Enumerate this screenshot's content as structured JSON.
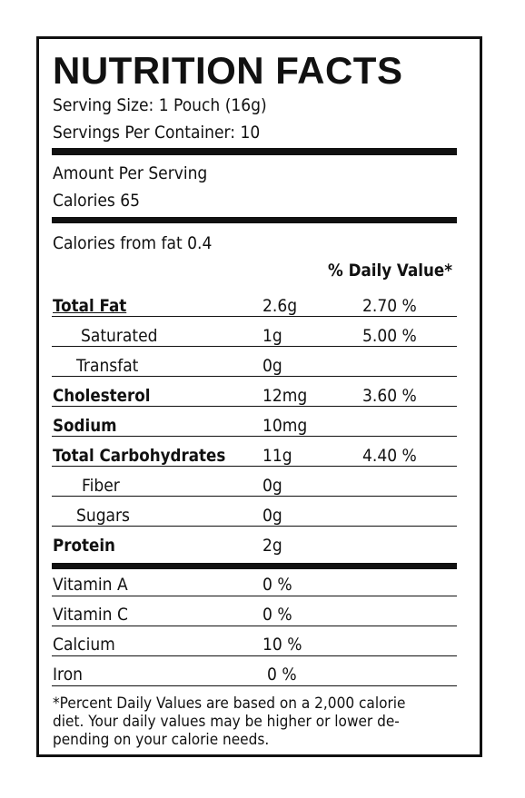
{
  "title": "NUTRITION FACTS",
  "serving_size": "Serving Size: 1 Pouch (16g)",
  "servings_per_container": "Servings Per Container: 10",
  "amount_per_serving": "Amount Per Serving",
  "calories": "Calories  65",
  "calories_from_fat": "Calories from fat 0.4",
  "dv_header": "% Daily Value*",
  "nutrients": {
    "total_fat": {
      "name": "Total Fat",
      "amount": "2.6g",
      "dv": "2.70 %"
    },
    "saturated": {
      "name": "Saturated",
      "amount": "1g",
      "dv": "5.00 %"
    },
    "transfat": {
      "name": "Transfat",
      "amount": "0g"
    },
    "cholesterol": {
      "name": "Cholesterol",
      "amount": "12mg",
      "dv": "3.60 %"
    },
    "sodium": {
      "name": "Sodium",
      "amount": "10mg"
    },
    "total_carbohydrates": {
      "name": "Total Carbohydrates",
      "amount": "11g",
      "dv": "4.40 %"
    },
    "fiber": {
      "name": "Fiber",
      "amount": "0g"
    },
    "sugars": {
      "name": "Sugars",
      "amount": "0g"
    },
    "protein": {
      "name": "Protein",
      "amount": "2g"
    }
  },
  "vitamins": {
    "vitamin_a": {
      "name": "Vitamin A",
      "amount": "0 %"
    },
    "vitamin_c": {
      "name": "Vitamin C",
      "amount": "0 %"
    },
    "calcium": {
      "name": "Calcium",
      "amount": "10 %"
    },
    "iron": {
      "name": "Iron",
      "amount": "0 %"
    }
  },
  "footnote": {
    "line1": "*Percent Daily Values are based on a 2,000 calorie",
    "line2": "diet. Your daily values may be higher or lower de-",
    "line3": "pending on your calorie needs."
  }
}
